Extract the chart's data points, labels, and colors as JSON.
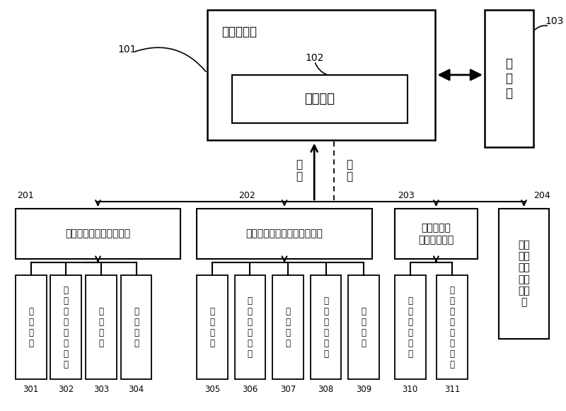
{
  "bg_color": "#ffffff",
  "server_label": "应用服务器",
  "analysis_label": "数据分析",
  "db_label": "数\n据\n库",
  "label_101": "101",
  "label_102": "102",
  "label_103": "103",
  "req_label": "请\n求",
  "resp_label": "响\n应",
  "l2_labels": [
    "价格的制定及仓库的建立",
    "加工件出入库管理及明细查询",
    "加工件入库\n物资明细查询",
    "加工\n件出\n库物\n资明\n细查\n询"
  ],
  "l2_ids": [
    "201",
    "202",
    "203",
    "204"
  ],
  "l3_labels": [
    "批\n量\n导\n入",
    "默\n认\n入\n库\n单\n位\n填\n报",
    "物\n资\n定\n价",
    "仓\n库\n建\n立",
    "入\n库\n管\n理",
    "月\n度\n单\n位\n预\n算",
    "物\n资\n出\n库",
    "物\n资\n出\n库\n查\n询",
    "库\n存\n盘\n点",
    "库\n存\n物\n资\n信\n息",
    "库\n存\n物\n资\n信\n息\n导\n出"
  ],
  "l3_ids": [
    "301",
    "302",
    "303",
    "304",
    "305",
    "306",
    "307",
    "308",
    "309",
    "310",
    "311"
  ]
}
